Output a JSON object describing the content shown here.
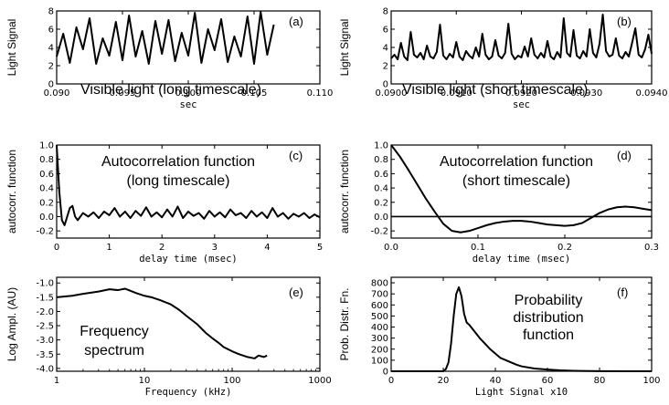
{
  "chart_data": [
    {
      "panel": "(a)",
      "type": "line",
      "ylabel": "Light Signal",
      "xlabel": "sec",
      "annotation": [
        "Visible light (long timescale)"
      ],
      "xlim": [
        0.09,
        0.11
      ],
      "ylim": [
        0,
        8
      ],
      "xscale": "linear",
      "xticks": [
        0.09,
        0.095,
        0.1,
        0.105,
        0.11
      ],
      "xticklabels": [
        "0.090",
        "0.095",
        "0.100",
        "0.105",
        "0.110"
      ],
      "yticks": [
        0,
        2,
        4,
        6,
        8
      ],
      "yticklabels": [
        "0",
        "2",
        "4",
        "6",
        "8"
      ],
      "series": [
        {
          "x": [
            0.09,
            0.0905,
            0.091,
            0.0915,
            0.092,
            0.0925,
            0.093,
            0.0935,
            0.094,
            0.0945,
            0.095,
            0.0955,
            0.096,
            0.0965,
            0.097,
            0.0975,
            0.098,
            0.0985,
            0.099,
            0.0995,
            0.1,
            0.1005,
            0.101,
            0.1015,
            0.102,
            0.1025,
            0.103,
            0.1035,
            0.104,
            0.1045,
            0.105,
            0.1055,
            0.106,
            0.1065
          ],
          "y": [
            3.0,
            5.5,
            2.3,
            6.2,
            3.8,
            7.2,
            2.2,
            5.0,
            3.1,
            6.8,
            2.6,
            7.5,
            3.0,
            5.8,
            2.2,
            6.9,
            3.3,
            7.0,
            2.5,
            5.6,
            3.1,
            7.8,
            2.3,
            6.0,
            3.7,
            7.1,
            2.4,
            5.2,
            3.0,
            7.4,
            2.2,
            7.9,
            3.2,
            6.5
          ]
        }
      ]
    },
    {
      "panel": "(b)",
      "type": "line",
      "ylabel": "Light Signal",
      "xlabel": "sec",
      "annotation": [
        "Visible light (short timescale)"
      ],
      "xlim": [
        0.09,
        0.094
      ],
      "ylim": [
        0,
        8
      ],
      "xscale": "linear",
      "xticks": [
        0.09,
        0.091,
        0.092,
        0.093,
        0.094
      ],
      "xticklabels": [
        "0.0900",
        "0.0910",
        "0.0920",
        "0.0930",
        "0.0940"
      ],
      "yticks": [
        0,
        2,
        4,
        6,
        8
      ],
      "yticklabels": [
        "0",
        "2",
        "4",
        "6",
        "8"
      ],
      "series": [
        {
          "x": [
            0.09,
            0.09005,
            0.0901,
            0.09015,
            0.0902,
            0.09025,
            0.0903,
            0.09035,
            0.0904,
            0.09045,
            0.0905,
            0.09055,
            0.0906,
            0.09065,
            0.0907,
            0.09075,
            0.0908,
            0.09085,
            0.0909,
            0.09095,
            0.091,
            0.09105,
            0.0911,
            0.09115,
            0.0912,
            0.09125,
            0.0913,
            0.09135,
            0.0914,
            0.09145,
            0.0915,
            0.09155,
            0.0916,
            0.09165,
            0.0917,
            0.09175,
            0.0918,
            0.09185,
            0.0919,
            0.09195,
            0.092,
            0.09205,
            0.0921,
            0.09215,
            0.0922,
            0.09225,
            0.0923,
            0.09235,
            0.0924,
            0.09245,
            0.0925,
            0.09255,
            0.0926,
            0.09265,
            0.0927,
            0.09275,
            0.0928,
            0.09285,
            0.0929,
            0.09295,
            0.093,
            0.09305,
            0.0931,
            0.09315,
            0.0932,
            0.09325,
            0.0933,
            0.09335,
            0.0934,
            0.09345,
            0.0935,
            0.09355,
            0.0936,
            0.09365,
            0.0937,
            0.09375,
            0.0938,
            0.09385,
            0.0939,
            0.09395,
            0.094
          ],
          "y": [
            2.8,
            3.2,
            2.7,
            4.5,
            3.0,
            2.6,
            5.7,
            3.2,
            2.9,
            3.4,
            2.7,
            4.2,
            3.0,
            2.8,
            3.5,
            6.5,
            3.1,
            2.7,
            3.3,
            2.9,
            4.6,
            3.0,
            2.6,
            3.6,
            3.1,
            2.8,
            4.0,
            3.0,
            5.5,
            3.2,
            2.7,
            3.0,
            4.8,
            3.1,
            2.8,
            3.4,
            6.6,
            3.3,
            2.7,
            3.1,
            2.9,
            4.1,
            3.0,
            5.0,
            3.2,
            2.8,
            3.4,
            2.9,
            4.7,
            3.0,
            2.7,
            3.5,
            2.9,
            7.2,
            3.4,
            3.0,
            5.9,
            3.1,
            2.8,
            3.6,
            3.0,
            6.0,
            3.4,
            2.9,
            4.4,
            7.6,
            3.6,
            3.0,
            3.2,
            5.0,
            3.1,
            2.8,
            3.5,
            3.0,
            4.5,
            6.1,
            3.2,
            2.9,
            3.8,
            5.4,
            3.3
          ]
        }
      ]
    },
    {
      "panel": "(c)",
      "type": "line",
      "ylabel": "autocorr. function",
      "xlabel": "delay time (msec)",
      "annotation": [
        "Autocorrelation function",
        "(long timescale)"
      ],
      "xlim": [
        0,
        5
      ],
      "ylim": [
        -0.3,
        1.0
      ],
      "xscale": "linear",
      "xticks": [
        0,
        1,
        2,
        3,
        4,
        5
      ],
      "xticklabels": [
        "0",
        "1",
        "2",
        "3",
        "4",
        "5"
      ],
      "yticks": [
        -0.2,
        0.0,
        0.2,
        0.4,
        0.6,
        0.8,
        1.0
      ],
      "yticklabels": [
        "-0.2",
        "0.0",
        "0.2",
        "0.4",
        "0.6",
        "0.8",
        "1.0"
      ],
      "series": [
        {
          "x": [
            0,
            0.05,
            0.1,
            0.15,
            0.2,
            0.25,
            0.3,
            0.35,
            0.4,
            0.5,
            0.6,
            0.7,
            0.8,
            0.9,
            1.0,
            1.1,
            1.2,
            1.3,
            1.4,
            1.5,
            1.6,
            1.7,
            1.8,
            1.9,
            2.0,
            2.1,
            2.2,
            2.3,
            2.4,
            2.5,
            2.6,
            2.7,
            2.8,
            2.9,
            3.0,
            3.1,
            3.2,
            3.3,
            3.4,
            3.5,
            3.6,
            3.7,
            3.8,
            3.9,
            4.0,
            4.1,
            4.2,
            4.3,
            4.4,
            4.5,
            4.6,
            4.7,
            4.8,
            4.9,
            5.0
          ],
          "y": [
            1.0,
            0.35,
            -0.05,
            -0.12,
            0.0,
            0.12,
            0.15,
            0.0,
            -0.05,
            0.05,
            0.0,
            0.06,
            -0.02,
            0.07,
            0.02,
            0.12,
            0.0,
            0.07,
            -0.02,
            0.08,
            0.01,
            0.13,
            0.0,
            0.06,
            -0.01,
            0.1,
            0.0,
            0.14,
            -0.02,
            0.07,
            0.01,
            0.05,
            -0.03,
            0.08,
            0.0,
            0.06,
            -0.01,
            0.1,
            0.02,
            0.05,
            -0.02,
            0.08,
            0.0,
            0.06,
            -0.02,
            0.12,
            0.0,
            0.05,
            -0.03,
            0.04,
            0.0,
            0.05,
            -0.02,
            0.03,
            -0.01
          ]
        }
      ]
    },
    {
      "panel": "(d)",
      "type": "line",
      "ylabel": "autocorr. function",
      "xlabel": "delay time (msec)",
      "annotation": [
        "Autocorrelation function",
        "(short timescale)"
      ],
      "xlim": [
        0,
        0.3
      ],
      "ylim": [
        -0.3,
        1.0
      ],
      "xscale": "linear",
      "xticks": [
        0,
        0.1,
        0.2,
        0.3
      ],
      "xticklabels": [
        "0.0",
        "0.1",
        "0.2",
        "0.3"
      ],
      "yticks": [
        -0.2,
        0.0,
        0.2,
        0.4,
        0.6,
        0.8,
        1.0
      ],
      "yticklabels": [
        "-0.2",
        "0.0",
        "0.2",
        "0.4",
        "0.6",
        "0.8",
        "1.0"
      ],
      "reference_line": 0.0,
      "series": [
        {
          "x": [
            0,
            0.005,
            0.01,
            0.02,
            0.03,
            0.04,
            0.05,
            0.06,
            0.07,
            0.08,
            0.09,
            0.1,
            0.11,
            0.12,
            0.13,
            0.14,
            0.15,
            0.16,
            0.17,
            0.18,
            0.19,
            0.2,
            0.21,
            0.22,
            0.23,
            0.24,
            0.25,
            0.26,
            0.27,
            0.28,
            0.29,
            0.3
          ],
          "y": [
            1.0,
            0.92,
            0.84,
            0.65,
            0.45,
            0.25,
            0.07,
            -0.1,
            -0.2,
            -0.22,
            -0.2,
            -0.16,
            -0.12,
            -0.09,
            -0.07,
            -0.06,
            -0.06,
            -0.07,
            -0.09,
            -0.11,
            -0.12,
            -0.13,
            -0.12,
            -0.09,
            -0.02,
            0.05,
            0.1,
            0.13,
            0.14,
            0.13,
            0.11,
            0.09
          ]
        }
      ]
    },
    {
      "panel": "(e)",
      "type": "line",
      "ylabel": "Log Ampl. (AU)",
      "xlabel": "Frequency (kHz)",
      "annotation": [
        "Frequency",
        "spectrum"
      ],
      "xlim": [
        1,
        1000
      ],
      "ylim": [
        -4.1,
        -0.8
      ],
      "xscale": "log",
      "xticks": [
        1,
        10,
        100,
        1000
      ],
      "xticklabels": [
        "1",
        "10",
        "100",
        "1000"
      ],
      "yticks": [
        -4.0,
        -3.5,
        -3.0,
        -2.5,
        -2.0,
        -1.5,
        -1.0
      ],
      "yticklabels": [
        "-4.0",
        "-3.5",
        "-3.0",
        "-2.5",
        "-2.0",
        "-1.5",
        "-1.0"
      ],
      "series": [
        {
          "x": [
            1.0,
            1.5,
            2.0,
            3.0,
            4.0,
            5.0,
            6.0,
            8.0,
            10,
            12,
            15,
            20,
            25,
            30,
            40,
            50,
            60,
            70,
            80,
            100,
            120,
            150,
            180,
            200,
            230,
            250
          ],
          "y": [
            -1.5,
            -1.45,
            -1.38,
            -1.3,
            -1.22,
            -1.25,
            -1.2,
            -1.35,
            -1.45,
            -1.5,
            -1.6,
            -1.75,
            -1.95,
            -2.15,
            -2.45,
            -2.75,
            -2.95,
            -3.1,
            -3.25,
            -3.4,
            -3.5,
            -3.6,
            -3.65,
            -3.55,
            -3.6,
            -3.55
          ]
        }
      ]
    },
    {
      "panel": "(f)",
      "type": "line",
      "ylabel": "Prob. Distr. Fn.",
      "xlabel": "Light Signal x10",
      "annotation": [
        "Probability",
        "distribution",
        "function"
      ],
      "xlim": [
        0,
        100
      ],
      "ylim": [
        0,
        850
      ],
      "xscale": "linear",
      "xticks": [
        0,
        20,
        40,
        60,
        80,
        100
      ],
      "xticklabels": [
        "0",
        "20",
        "40",
        "60",
        "80",
        "100"
      ],
      "yticks": [
        0,
        100,
        200,
        300,
        400,
        500,
        600,
        700,
        800
      ],
      "yticklabels": [
        "0",
        "100",
        "200",
        "300",
        "400",
        "500",
        "600",
        "700",
        "800"
      ],
      "series": [
        {
          "x": [
            0,
            20,
            21,
            22,
            23,
            24,
            25,
            26,
            27,
            28,
            29,
            30,
            32,
            34,
            36,
            38,
            40,
            42,
            45,
            48,
            50,
            55,
            60,
            65,
            70,
            80,
            90,
            100
          ],
          "y": [
            0,
            0,
            20,
            80,
            250,
            500,
            700,
            760,
            680,
            520,
            440,
            420,
            360,
            300,
            250,
            200,
            160,
            120,
            90,
            60,
            45,
            25,
            15,
            8,
            4,
            1,
            0,
            0
          ]
        }
      ]
    }
  ]
}
